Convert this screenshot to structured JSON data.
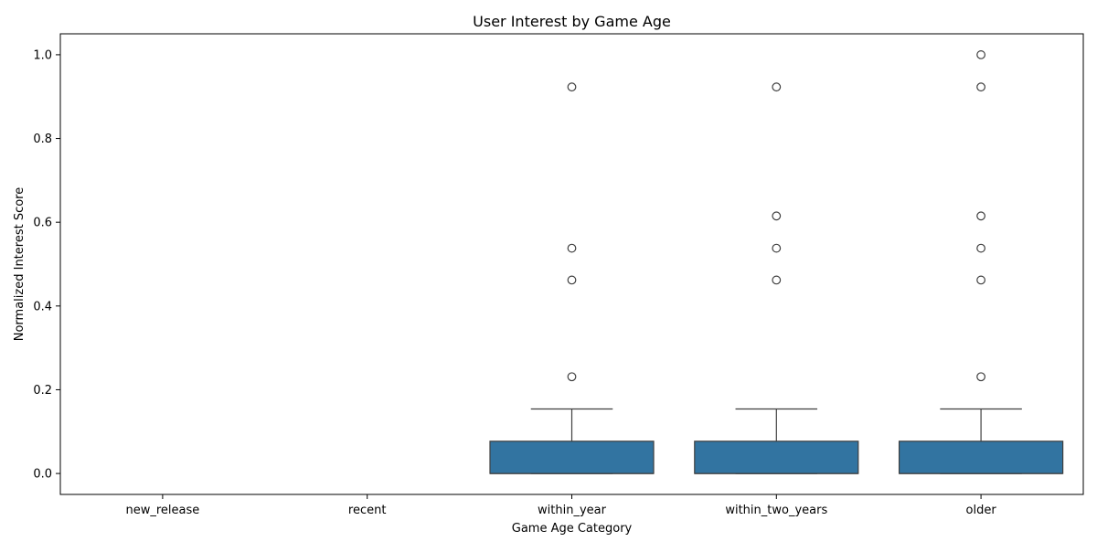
{
  "chart_data": {
    "type": "box",
    "title": "User Interest by Game Age",
    "xlabel": "Game Age Category",
    "ylabel": "Normalized Interest Score",
    "ylim": [
      -0.05,
      1.05
    ],
    "yticks": [
      0.0,
      0.2,
      0.4,
      0.6,
      0.8,
      1.0
    ],
    "ytick_labels": [
      "0.0",
      "0.2",
      "0.4",
      "0.6",
      "0.8",
      "1.0"
    ],
    "grid": false,
    "categories": [
      "new_release",
      "recent",
      "within_year",
      "within_two_years",
      "older"
    ],
    "boxes": [
      {
        "category": "new_release",
        "has_data": false
      },
      {
        "category": "recent",
        "has_data": false
      },
      {
        "category": "within_year",
        "has_data": true,
        "whislo": 0.0,
        "q1": 0.0,
        "med": 0.0,
        "q3": 0.077,
        "whishi": 0.154,
        "fliers": [
          0.231,
          0.462,
          0.538,
          0.923
        ]
      },
      {
        "category": "within_two_years",
        "has_data": true,
        "whislo": 0.0,
        "q1": 0.0,
        "med": 0.0,
        "q3": 0.077,
        "whishi": 0.154,
        "fliers": [
          0.462,
          0.538,
          0.615,
          0.923
        ]
      },
      {
        "category": "older",
        "has_data": true,
        "whislo": 0.0,
        "q1": 0.0,
        "med": 0.0,
        "q3": 0.077,
        "whishi": 0.154,
        "fliers": [
          0.231,
          0.462,
          0.538,
          0.615,
          0.923,
          1.0
        ]
      }
    ],
    "colors": {
      "box_fill": "#3274a1",
      "line": "#3f3f3f",
      "axis": "#000000"
    }
  }
}
